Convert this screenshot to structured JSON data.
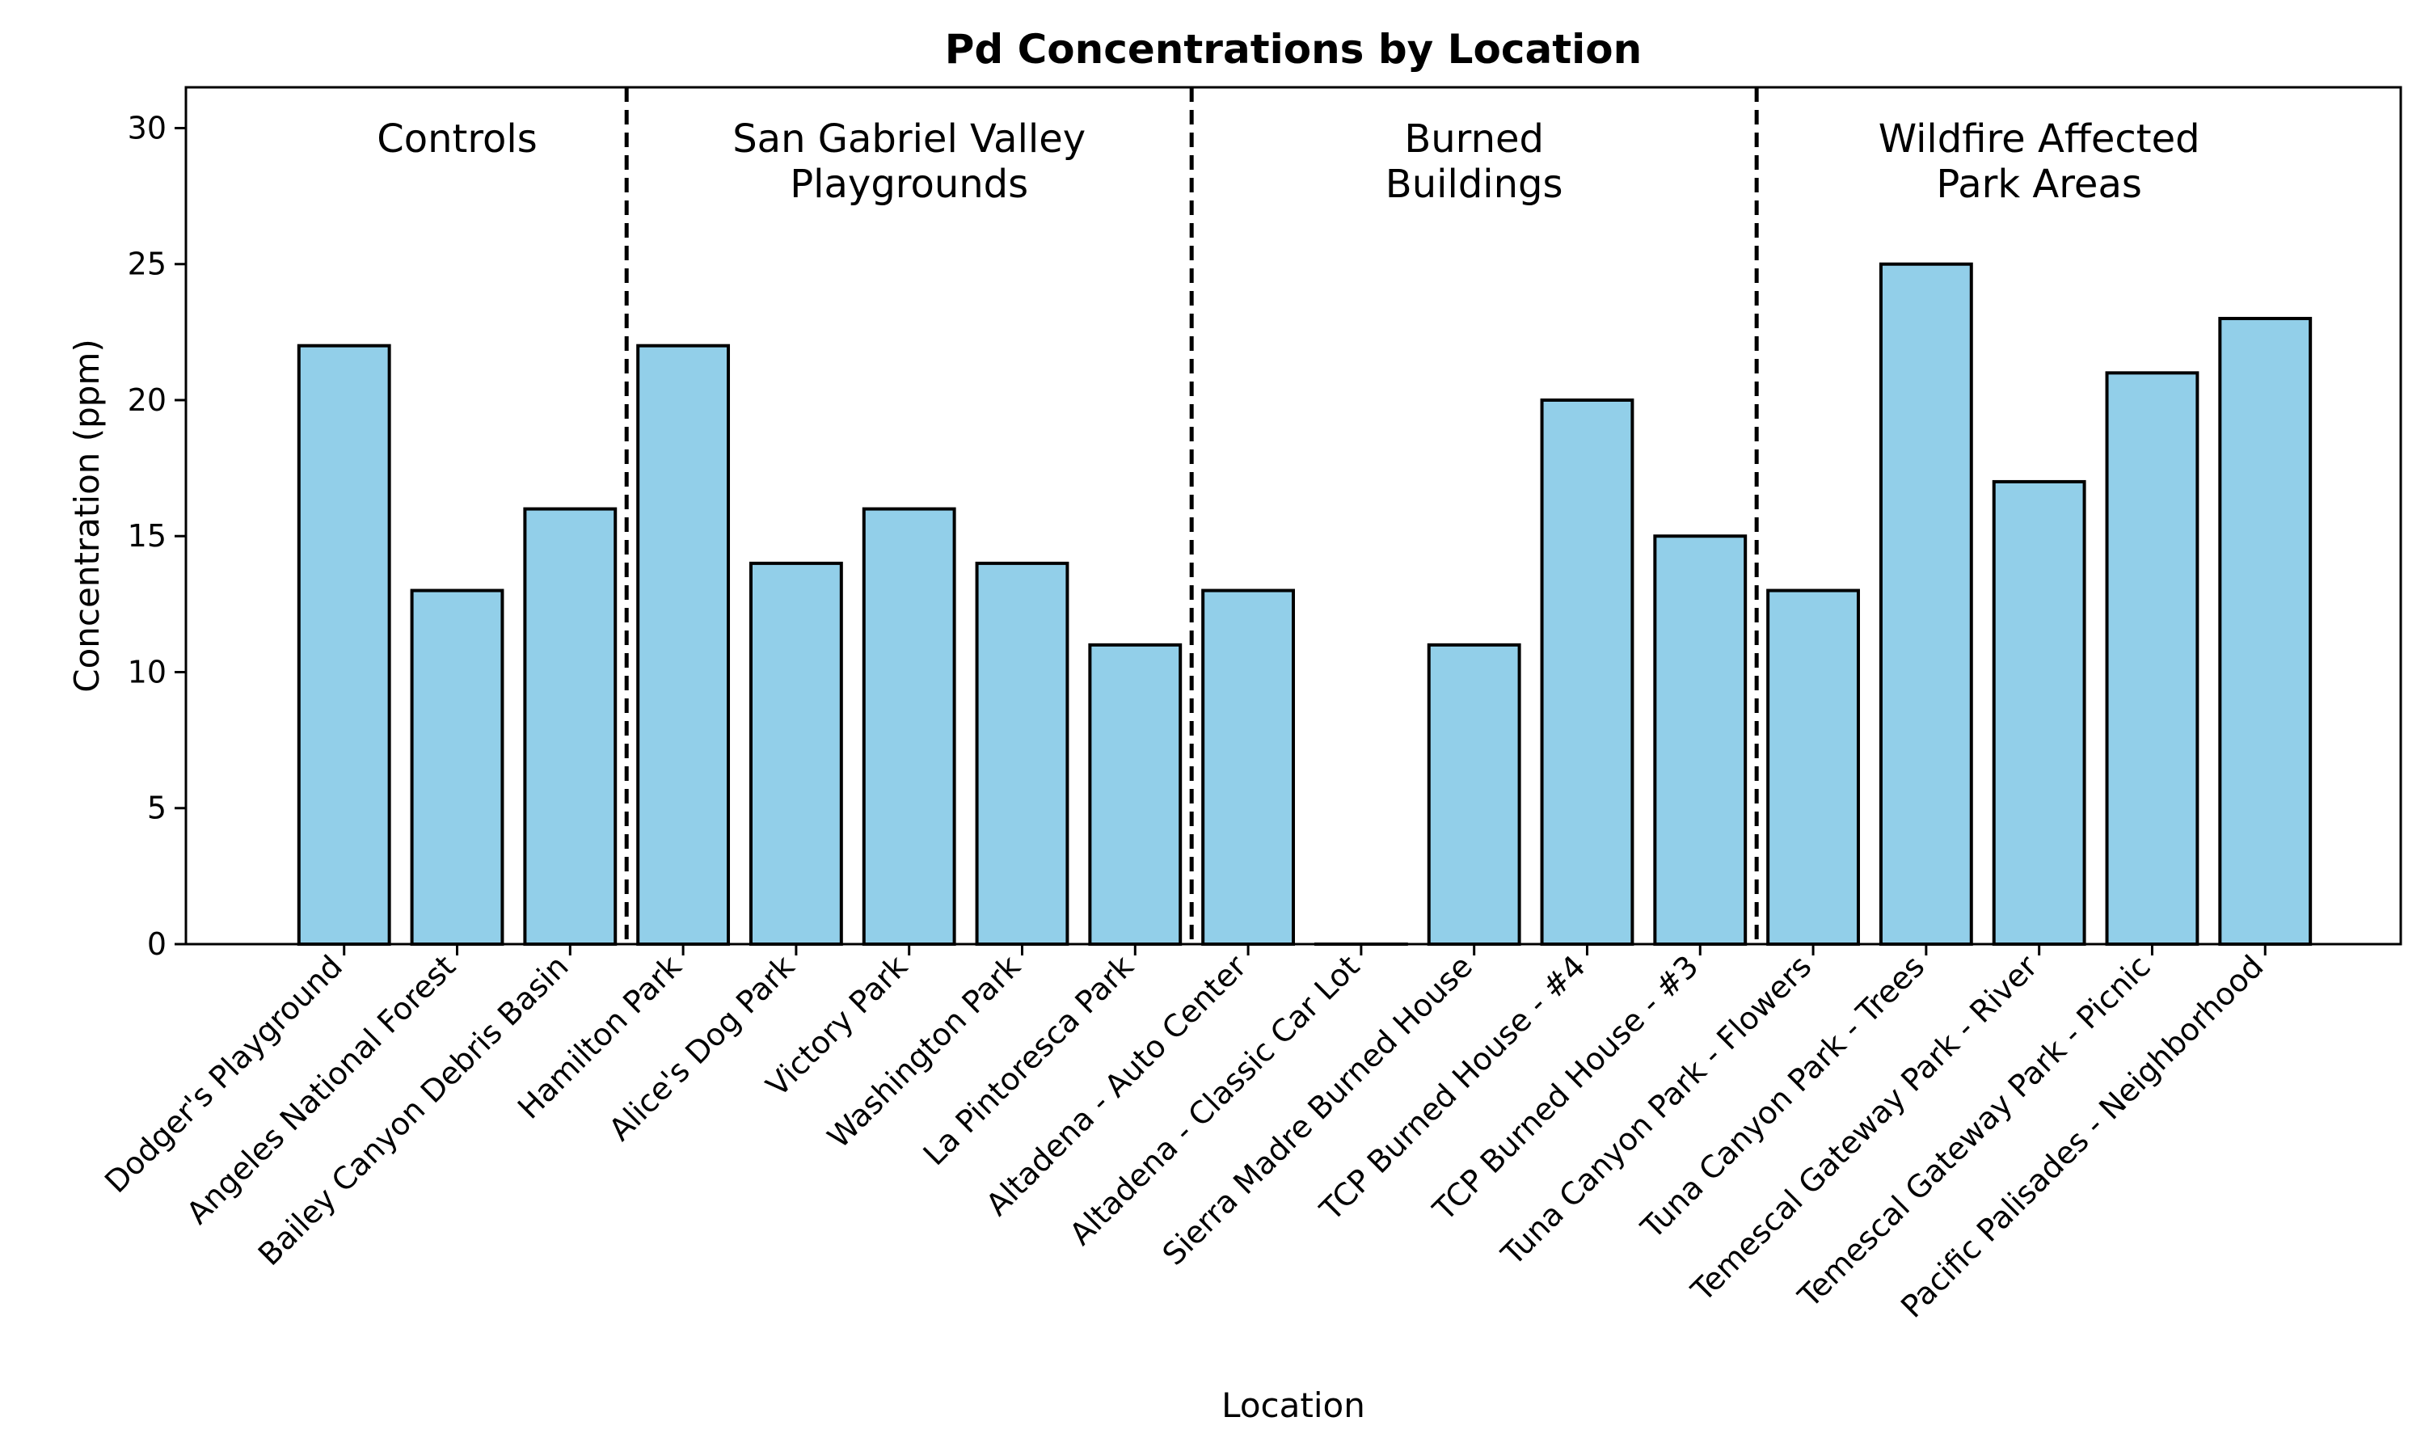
{
  "chart_data": {
    "type": "bar",
    "title": "Pd Concentrations by Location",
    "xlabel": "Location",
    "ylabel": "Concentration (ppm)",
    "ylim": [
      0,
      31.5
    ],
    "yticks": [
      0,
      5,
      10,
      15,
      20,
      25,
      30
    ],
    "grid": false,
    "colors": {
      "bar": "#92cfe9",
      "edge": "#000000"
    },
    "categories": [
      "Dodger's Playground",
      "Angeles National Forest",
      "Bailey Canyon Debris Basin",
      "Hamilton Park",
      "Alice's Dog Park",
      "Victory Park",
      "Washington Park",
      "La Pintoresca Park",
      "Altadena - Auto Center",
      "Altadena - Classic Car Lot",
      "Sierra Madre Burned House",
      "TCP Burned House - #4",
      "TCP Burned House - #3",
      "Tuna Canyon Park - Flowers",
      "Tuna Canyon Park - Trees",
      "Temescal Gateway Park - River",
      "Temescal Gateway Park - Picnic",
      "Pacific Palisades - Neighborhood"
    ],
    "values": [
      22,
      13,
      16,
      22,
      14,
      16,
      14,
      11,
      13,
      0,
      11,
      20,
      15,
      13,
      25,
      17,
      21,
      23
    ],
    "groups": [
      {
        "lines": [
          "Controls"
        ],
        "start": 0,
        "end": 2
      },
      {
        "lines": [
          "San Gabriel Valley",
          "Playgrounds"
        ],
        "start": 3,
        "end": 7
      },
      {
        "lines": [
          "Burned",
          "Buildings"
        ],
        "start": 8,
        "end": 12
      },
      {
        "lines": [
          "Wildfire Affected",
          "Park Areas"
        ],
        "start": 13,
        "end": 17
      }
    ]
  }
}
